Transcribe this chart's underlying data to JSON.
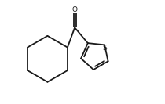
{
  "background_color": "#ffffff",
  "line_color": "#1a1a1a",
  "line_width": 1.3,
  "fig_width": 2.1,
  "fig_height": 1.33,
  "dpi": 100,
  "S_label": "S",
  "O_label": "O",
  "font_size_S": 6.5,
  "font_size_O": 6.5,
  "xlim": [
    0,
    10
  ],
  "ylim": [
    0,
    6.35
  ]
}
